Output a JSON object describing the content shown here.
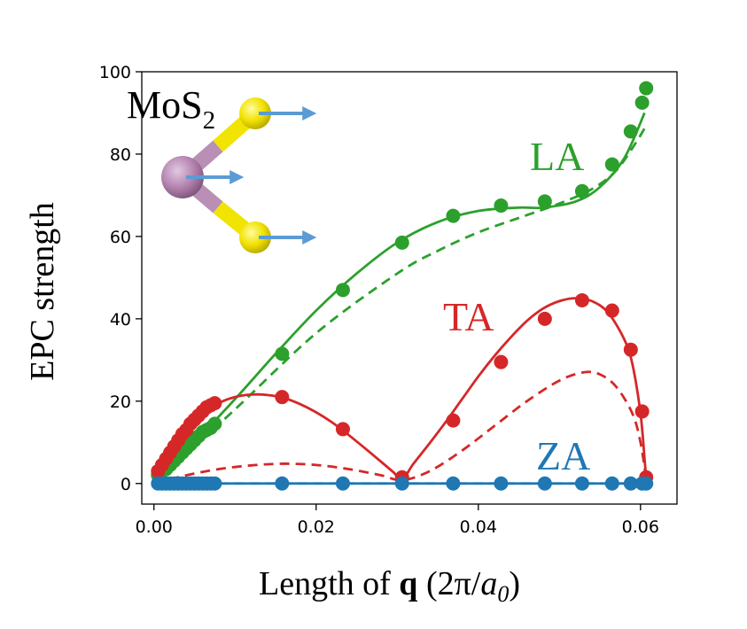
{
  "chart_data": {
    "type": "scatter",
    "xlabel": {
      "prefix": "Length of ",
      "bold": "q",
      "paren": " (2π/",
      "italic": "a",
      "sub": "0",
      "close": ")"
    },
    "ylabel": "EPC strength",
    "xlim": [
      -0.0015,
      0.0645
    ],
    "ylim": [
      -5,
      100
    ],
    "xticks": [
      "0.00",
      "0.02",
      "0.04",
      "0.06"
    ],
    "yticks": [
      "0",
      "20",
      "40",
      "60",
      "80",
      "100"
    ],
    "grid": false,
    "inset_label": {
      "base": "MoS",
      "sub": "2"
    },
    "series": [
      {
        "name": "LA",
        "color": "#2ca02c",
        "points": [
          [
            0.0005,
            2
          ],
          [
            0.001,
            3
          ],
          [
            0.0015,
            3.5
          ],
          [
            0.002,
            4.5
          ],
          [
            0.0025,
            5.5
          ],
          [
            0.003,
            6.5
          ],
          [
            0.0035,
            7.5
          ],
          [
            0.004,
            8.5
          ],
          [
            0.0045,
            9.5
          ],
          [
            0.005,
            10.5
          ],
          [
            0.0055,
            11.5
          ],
          [
            0.006,
            12.5
          ],
          [
            0.0065,
            13
          ],
          [
            0.007,
            13.5
          ],
          [
            0.0075,
            14.5
          ],
          [
            0.0158,
            31.5
          ],
          [
            0.0233,
            47
          ],
          [
            0.0306,
            58.5
          ],
          [
            0.0369,
            65
          ],
          [
            0.0428,
            67.5
          ],
          [
            0.0482,
            68.5
          ],
          [
            0.0528,
            71
          ],
          [
            0.0565,
            77.5
          ],
          [
            0.0588,
            85.5
          ],
          [
            0.0602,
            92.5
          ],
          [
            0.0607,
            96
          ]
        ],
        "fit": [
          [
            0,
            0
          ],
          [
            0.005,
            10
          ],
          [
            0.01,
            20.5
          ],
          [
            0.015,
            31.5
          ],
          [
            0.02,
            42
          ],
          [
            0.025,
            51
          ],
          [
            0.03,
            58.5
          ],
          [
            0.035,
            63.5
          ],
          [
            0.04,
            66.2
          ],
          [
            0.045,
            67
          ],
          [
            0.048,
            67
          ],
          [
            0.052,
            68.5
          ],
          [
            0.055,
            72
          ],
          [
            0.058,
            79
          ],
          [
            0.0605,
            90
          ]
        ],
        "model": [
          [
            0,
            0
          ],
          [
            0.01,
            18
          ],
          [
            0.02,
            36.5
          ],
          [
            0.03,
            51
          ],
          [
            0.035,
            56.5
          ],
          [
            0.04,
            61
          ],
          [
            0.045,
            64.5
          ],
          [
            0.05,
            68
          ],
          [
            0.054,
            71.5
          ],
          [
            0.057,
            76
          ],
          [
            0.0595,
            83
          ],
          [
            0.0607,
            87
          ]
        ]
      },
      {
        "name": "TA",
        "color": "#d62728",
        "points": [
          [
            0.0005,
            3
          ],
          [
            0.001,
            4.5
          ],
          [
            0.0015,
            6
          ],
          [
            0.002,
            7.5
          ],
          [
            0.0025,
            9
          ],
          [
            0.003,
            10.5
          ],
          [
            0.0035,
            12
          ],
          [
            0.004,
            13
          ],
          [
            0.0045,
            14.5
          ],
          [
            0.005,
            15.5
          ],
          [
            0.0055,
            16.5
          ],
          [
            0.006,
            17.5
          ],
          [
            0.0065,
            18.5
          ],
          [
            0.007,
            19
          ],
          [
            0.0075,
            19.5
          ],
          [
            0.0158,
            21
          ],
          [
            0.0233,
            13.2
          ],
          [
            0.0306,
            1.5
          ],
          [
            0.0369,
            15.3
          ],
          [
            0.0428,
            29.5
          ],
          [
            0.0482,
            40
          ],
          [
            0.0528,
            44.5
          ],
          [
            0.0565,
            42
          ],
          [
            0.0588,
            32.5
          ],
          [
            0.0602,
            17.5
          ],
          [
            0.0607,
            1.5
          ]
        ],
        "fit": [
          [
            0,
            1
          ],
          [
            0.002,
            7
          ],
          [
            0.004,
            12.5
          ],
          [
            0.006,
            16.5
          ],
          [
            0.008,
            19.5
          ],
          [
            0.01,
            21
          ],
          [
            0.012,
            21.6
          ],
          [
            0.014,
            21.5
          ],
          [
            0.016,
            20.8
          ],
          [
            0.018,
            19.3
          ],
          [
            0.02,
            17.3
          ],
          [
            0.022,
            14.8
          ],
          [
            0.024,
            11.8
          ],
          [
            0.026,
            8.6
          ],
          [
            0.028,
            5.3
          ],
          [
            0.0295,
            2.8
          ],
          [
            0.0306,
            1
          ],
          [
            0.032,
            4.8
          ],
          [
            0.034,
            9.8
          ],
          [
            0.036,
            15
          ],
          [
            0.038,
            20.5
          ],
          [
            0.04,
            26
          ],
          [
            0.042,
            31
          ],
          [
            0.044,
            35.5
          ],
          [
            0.046,
            39.5
          ],
          [
            0.048,
            42.5
          ],
          [
            0.05,
            44.3
          ],
          [
            0.052,
            45
          ],
          [
            0.054,
            44.3
          ],
          [
            0.056,
            41.5
          ],
          [
            0.058,
            35
          ],
          [
            0.059,
            29
          ],
          [
            0.06,
            17
          ],
          [
            0.0605,
            6
          ],
          [
            0.0607,
            1
          ]
        ],
        "model": [
          [
            0,
            0
          ],
          [
            0.004,
            2
          ],
          [
            0.008,
            3.5
          ],
          [
            0.012,
            4.4
          ],
          [
            0.016,
            4.8
          ],
          [
            0.02,
            4.5
          ],
          [
            0.024,
            3.5
          ],
          [
            0.028,
            2
          ],
          [
            0.0306,
            0.8
          ],
          [
            0.034,
            3
          ],
          [
            0.038,
            8
          ],
          [
            0.042,
            14
          ],
          [
            0.046,
            20
          ],
          [
            0.05,
            25
          ],
          [
            0.053,
            27
          ],
          [
            0.055,
            26.5
          ],
          [
            0.057,
            23.5
          ],
          [
            0.059,
            17
          ],
          [
            0.06,
            10
          ],
          [
            0.0607,
            1
          ]
        ]
      },
      {
        "name": "ZA",
        "color": "#1f77b4",
        "points": [
          [
            0.0005,
            0
          ],
          [
            0.001,
            0
          ],
          [
            0.0015,
            0
          ],
          [
            0.002,
            0
          ],
          [
            0.0025,
            0
          ],
          [
            0.003,
            0
          ],
          [
            0.0035,
            0
          ],
          [
            0.004,
            0
          ],
          [
            0.0045,
            0
          ],
          [
            0.005,
            0
          ],
          [
            0.0055,
            0
          ],
          [
            0.006,
            0
          ],
          [
            0.0065,
            0
          ],
          [
            0.007,
            0
          ],
          [
            0.0075,
            0
          ],
          [
            0.0158,
            0
          ],
          [
            0.0233,
            0
          ],
          [
            0.0306,
            0
          ],
          [
            0.0369,
            0
          ],
          [
            0.0428,
            0
          ],
          [
            0.0482,
            0
          ],
          [
            0.0528,
            0
          ],
          [
            0.0565,
            0
          ],
          [
            0.0588,
            0
          ],
          [
            0.0602,
            0
          ],
          [
            0.0607,
            0
          ]
        ],
        "fit": [
          [
            0,
            0
          ],
          [
            0.0607,
            0
          ]
        ],
        "model": [
          [
            0,
            0
          ],
          [
            0.0607,
            0
          ]
        ]
      }
    ]
  }
}
